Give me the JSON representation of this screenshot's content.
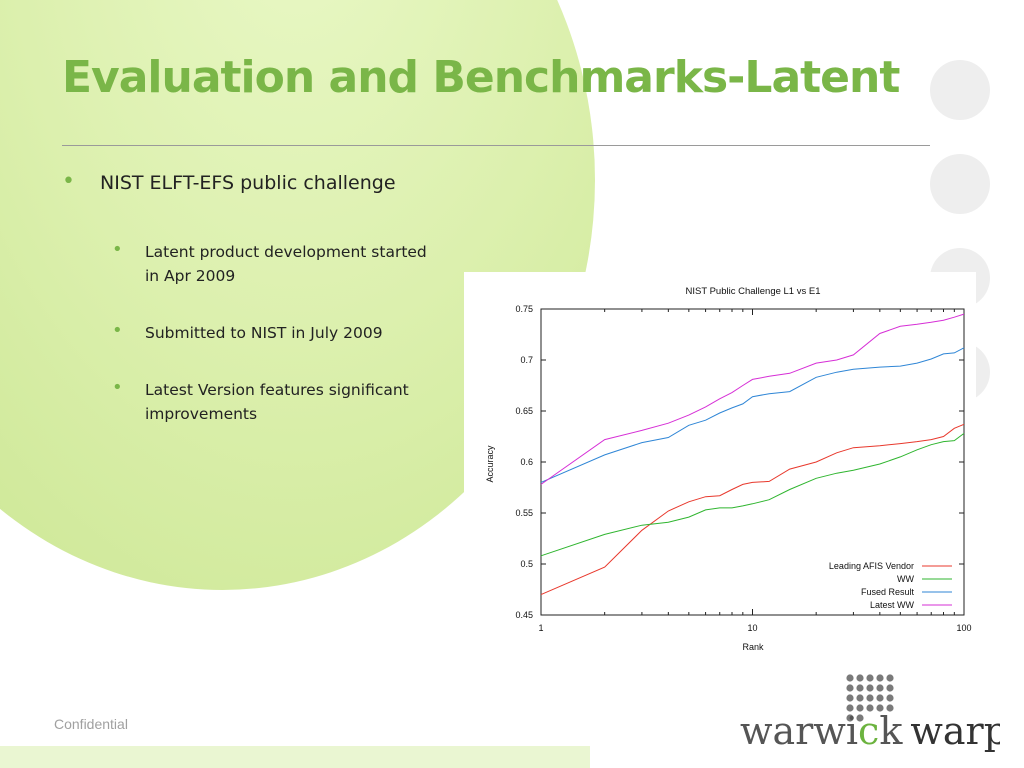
{
  "slide": {
    "title": "Evaluation and Benchmarks-Latent",
    "bullets": [
      {
        "text": "NIST ELFT-EFS public challenge",
        "level": 1
      },
      {
        "text": "Latent product development started in Apr 2009",
        "level": 2
      },
      {
        "text": "Submitted to NIST in July 2009",
        "level": 2
      },
      {
        "text": "Latest Version features significant improvements",
        "level": 2
      }
    ],
    "footer": "Confidential"
  },
  "logo": {
    "part1": "warwi",
    "part_c": "c",
    "part2": "k",
    "part3": "warp",
    "accent_color": "#6cb33f"
  },
  "colors": {
    "title": "#7ab648",
    "bullet": "#7ab648",
    "text": "#222222"
  },
  "chart_data": {
    "type": "line",
    "title": "NIST Public Challenge L1 vs E1",
    "xlabel": "Rank",
    "ylabel": "Accuracy",
    "xscale": "log",
    "xlim": [
      1,
      100
    ],
    "ylim": [
      0.45,
      0.75
    ],
    "xticks": [
      1,
      10,
      100
    ],
    "yticks": [
      0.45,
      0.5,
      0.55,
      0.6,
      0.65,
      0.7,
      0.75
    ],
    "legend_position": "bottom-right",
    "grid": false,
    "series": [
      {
        "name": "Leading AFIS Vendor",
        "color": "#e8382c",
        "x": [
          1,
          2,
          3,
          4,
          5,
          6,
          7,
          8,
          9,
          10,
          12,
          15,
          20,
          25,
          30,
          40,
          50,
          60,
          70,
          80,
          90,
          100
        ],
        "y": [
          0.47,
          0.497,
          0.533,
          0.552,
          0.561,
          0.566,
          0.567,
          0.573,
          0.578,
          0.58,
          0.581,
          0.593,
          0.6,
          0.609,
          0.614,
          0.616,
          0.618,
          0.62,
          0.622,
          0.625,
          0.633,
          0.637
        ]
      },
      {
        "name": "WW",
        "color": "#2fb52f",
        "x": [
          1,
          2,
          3,
          4,
          5,
          6,
          7,
          8,
          9,
          10,
          12,
          15,
          20,
          25,
          30,
          40,
          50,
          60,
          70,
          80,
          90,
          100
        ],
        "y": [
          0.508,
          0.529,
          0.538,
          0.541,
          0.546,
          0.553,
          0.555,
          0.555,
          0.557,
          0.559,
          0.563,
          0.573,
          0.584,
          0.589,
          0.592,
          0.598,
          0.605,
          0.612,
          0.617,
          0.62,
          0.621,
          0.628
        ]
      },
      {
        "name": "Fused Result",
        "color": "#2f86d6",
        "x": [
          1,
          2,
          3,
          4,
          5,
          6,
          7,
          8,
          9,
          10,
          12,
          15,
          20,
          25,
          30,
          40,
          50,
          60,
          70,
          80,
          90,
          100
        ],
        "y": [
          0.58,
          0.607,
          0.619,
          0.624,
          0.636,
          0.641,
          0.648,
          0.653,
          0.657,
          0.664,
          0.667,
          0.669,
          0.683,
          0.688,
          0.691,
          0.693,
          0.694,
          0.697,
          0.701,
          0.706,
          0.707,
          0.712
        ]
      },
      {
        "name": "Latest WW",
        "color": "#d62fd6",
        "x": [
          1,
          2,
          3,
          4,
          5,
          6,
          7,
          8,
          9,
          10,
          12,
          15,
          20,
          25,
          30,
          40,
          50,
          60,
          70,
          80,
          90,
          100
        ],
        "y": [
          0.578,
          0.622,
          0.631,
          0.638,
          0.646,
          0.654,
          0.662,
          0.668,
          0.675,
          0.681,
          0.684,
          0.687,
          0.697,
          0.7,
          0.705,
          0.726,
          0.733,
          0.735,
          0.737,
          0.739,
          0.742,
          0.745
        ]
      }
    ]
  }
}
